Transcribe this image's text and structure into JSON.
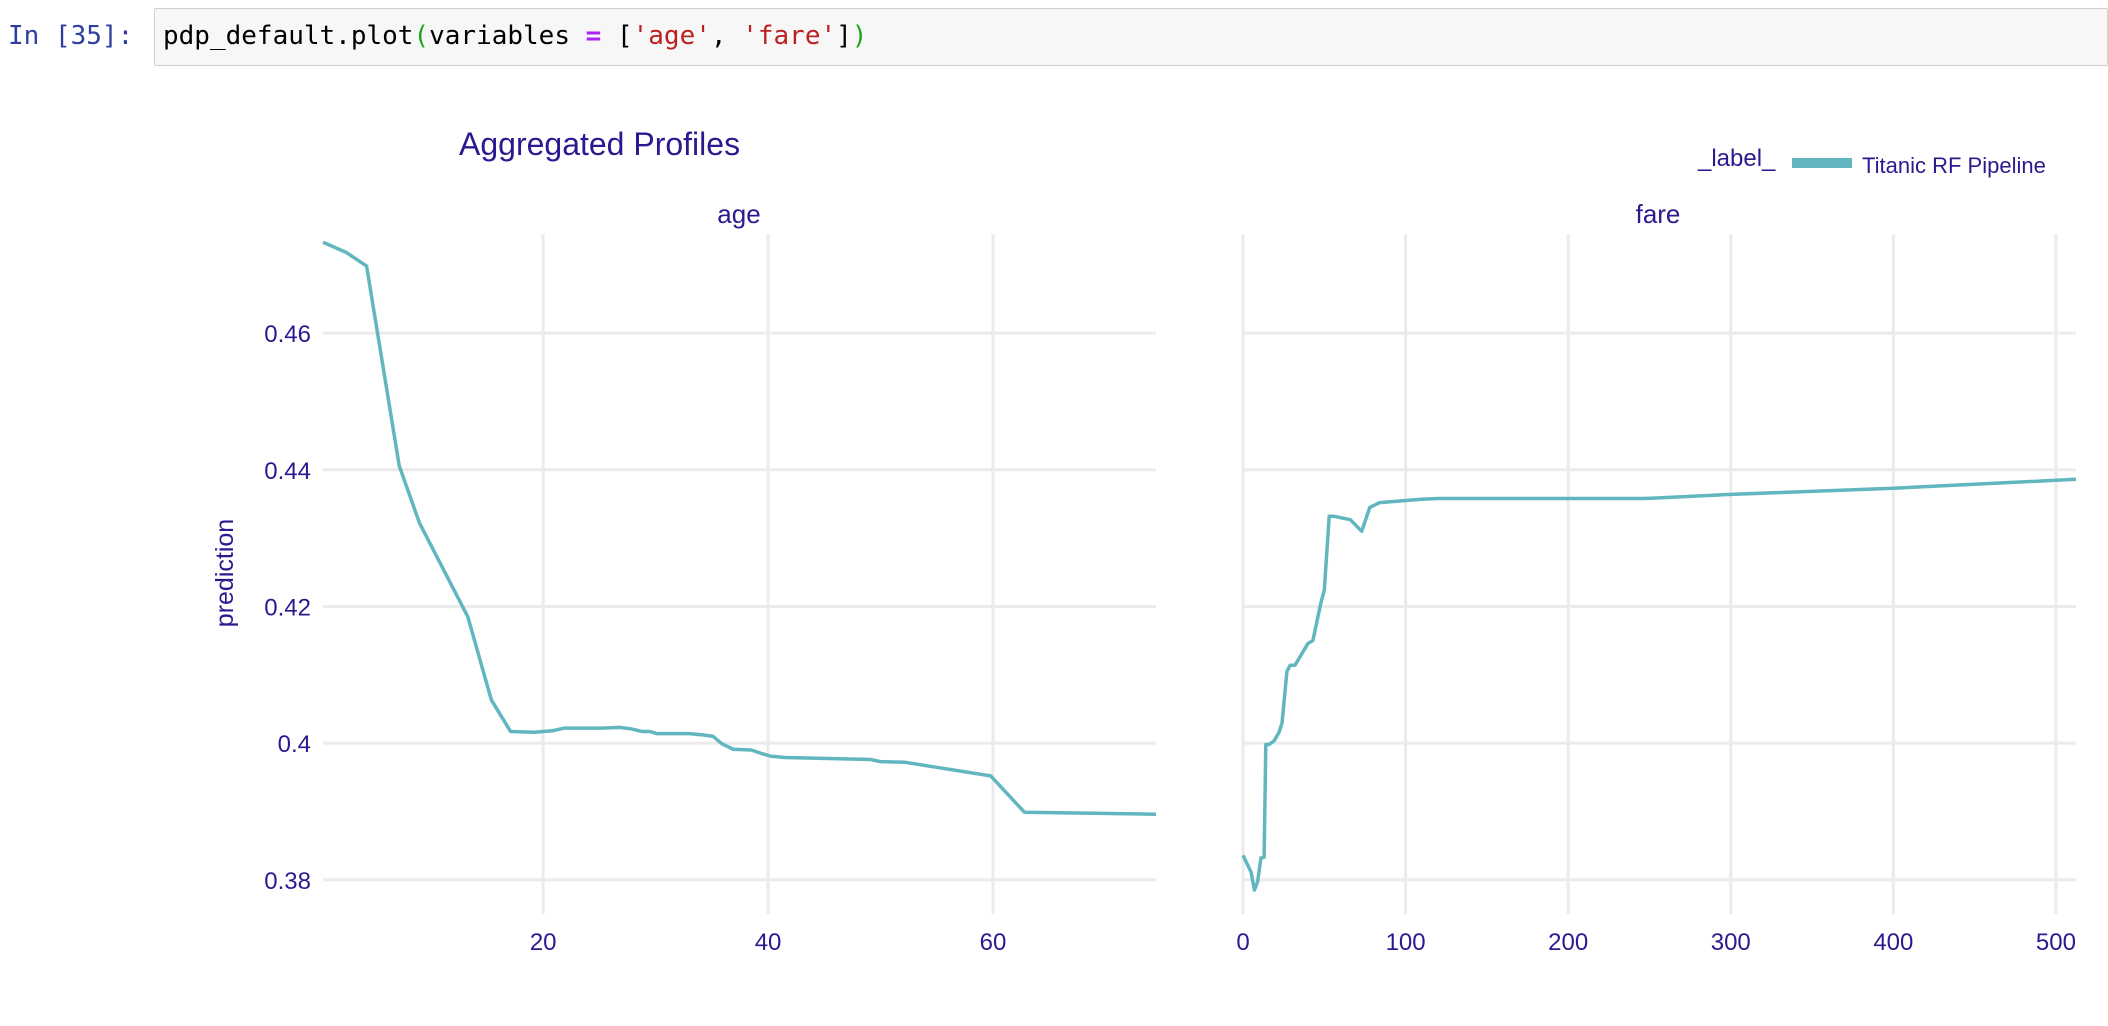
{
  "cell": {
    "prompt": "In [35]:",
    "code": {
      "p1": "pdp_default.plot",
      "p2": "(",
      "p3": "variables ",
      "p4": "=",
      "p5": " [",
      "p6": "'age'",
      "p7": ", ",
      "p8": "'fare'",
      "p9": "]",
      "p10": ")"
    }
  },
  "chart_data": {
    "type": "line",
    "title": "Aggregated Profiles",
    "ylabel": "prediction",
    "legend": {
      "title": "_label_",
      "placement": "top-right",
      "entries": [
        {
          "name": "Titanic RF Pipeline",
          "color": "#62b6bf"
        }
      ]
    },
    "grid": true,
    "ylim": [
      0.375,
      0.4745
    ],
    "yticks": [
      0.38,
      0.4,
      0.42,
      0.44,
      0.46
    ],
    "ytick_labels": [
      "0.38",
      "0.4",
      "0.42",
      "0.44",
      "0.46"
    ],
    "panels": [
      {
        "name": "age",
        "xlim": [
          0.42,
          74.5
        ],
        "xticks": [
          20,
          40,
          60
        ],
        "xtick_labels": [
          "20",
          "40",
          "60"
        ],
        "series": [
          {
            "name": "Titanic RF Pipeline",
            "x": [
              0.42,
              2.5,
              4.3,
              7.2,
              9.0,
              13.3,
              15.4,
              17.1,
              19.2,
              20.8,
              21.9,
              25.3,
              26.8,
              27.8,
              28.8,
              29.5,
              30.1,
              33.0,
              34.2,
              35.1,
              35.9,
              36.9,
              38.5,
              39.4,
              40.2,
              41.5,
              49.1,
              50.0,
              52.2,
              55.2,
              59.8,
              62.8,
              74.5
            ],
            "y": [
              0.4733,
              0.4718,
              0.4698,
              0.4406,
              0.4322,
              0.4185,
              0.4063,
              0.4017,
              0.4016,
              0.4018,
              0.4022,
              0.4022,
              0.4023,
              0.4021,
              0.4017,
              0.4017,
              0.4014,
              0.4014,
              0.4012,
              0.401,
              0.3999,
              0.3991,
              0.399,
              0.3985,
              0.3981,
              0.3979,
              0.3976,
              0.3973,
              0.3972,
              0.3964,
              0.3952,
              0.3899,
              0.3896
            ]
          }
        ]
      },
      {
        "name": "fare",
        "xlim": [
          0,
          512.33
        ],
        "xticks": [
          0,
          100,
          200,
          300,
          400,
          500
        ],
        "xtick_labels": [
          "0",
          "100",
          "200",
          "300",
          "400",
          "500"
        ],
        "series": [
          {
            "name": "Titanic RF Pipeline",
            "x": [
              0,
              5,
              7,
              9,
              11,
              13,
              14,
              16,
              19,
              22,
              24,
              27,
              29,
              32,
              36,
              40,
              43,
              46,
              48,
              50,
              53,
              56,
              66,
              73,
              78,
              84,
              90,
              100,
              110,
              120,
              150,
              200,
              247,
              300,
              400,
              512.33
            ],
            "y": [
              0.3836,
              0.3811,
              0.3785,
              0.3797,
              0.3832,
              0.3833,
              0.3998,
              0.3998,
              0.4003,
              0.4015,
              0.4029,
              0.4105,
              0.4114,
              0.4114,
              0.413,
              0.4146,
              0.415,
              0.4184,
              0.4206,
              0.4224,
              0.4332,
              0.4332,
              0.4327,
              0.431,
              0.4345,
              0.4352,
              0.4353,
              0.4355,
              0.4357,
              0.4358,
              0.4358,
              0.4358,
              0.4358,
              0.4364,
              0.4373,
              0.4386
            ]
          }
        ]
      }
    ]
  }
}
